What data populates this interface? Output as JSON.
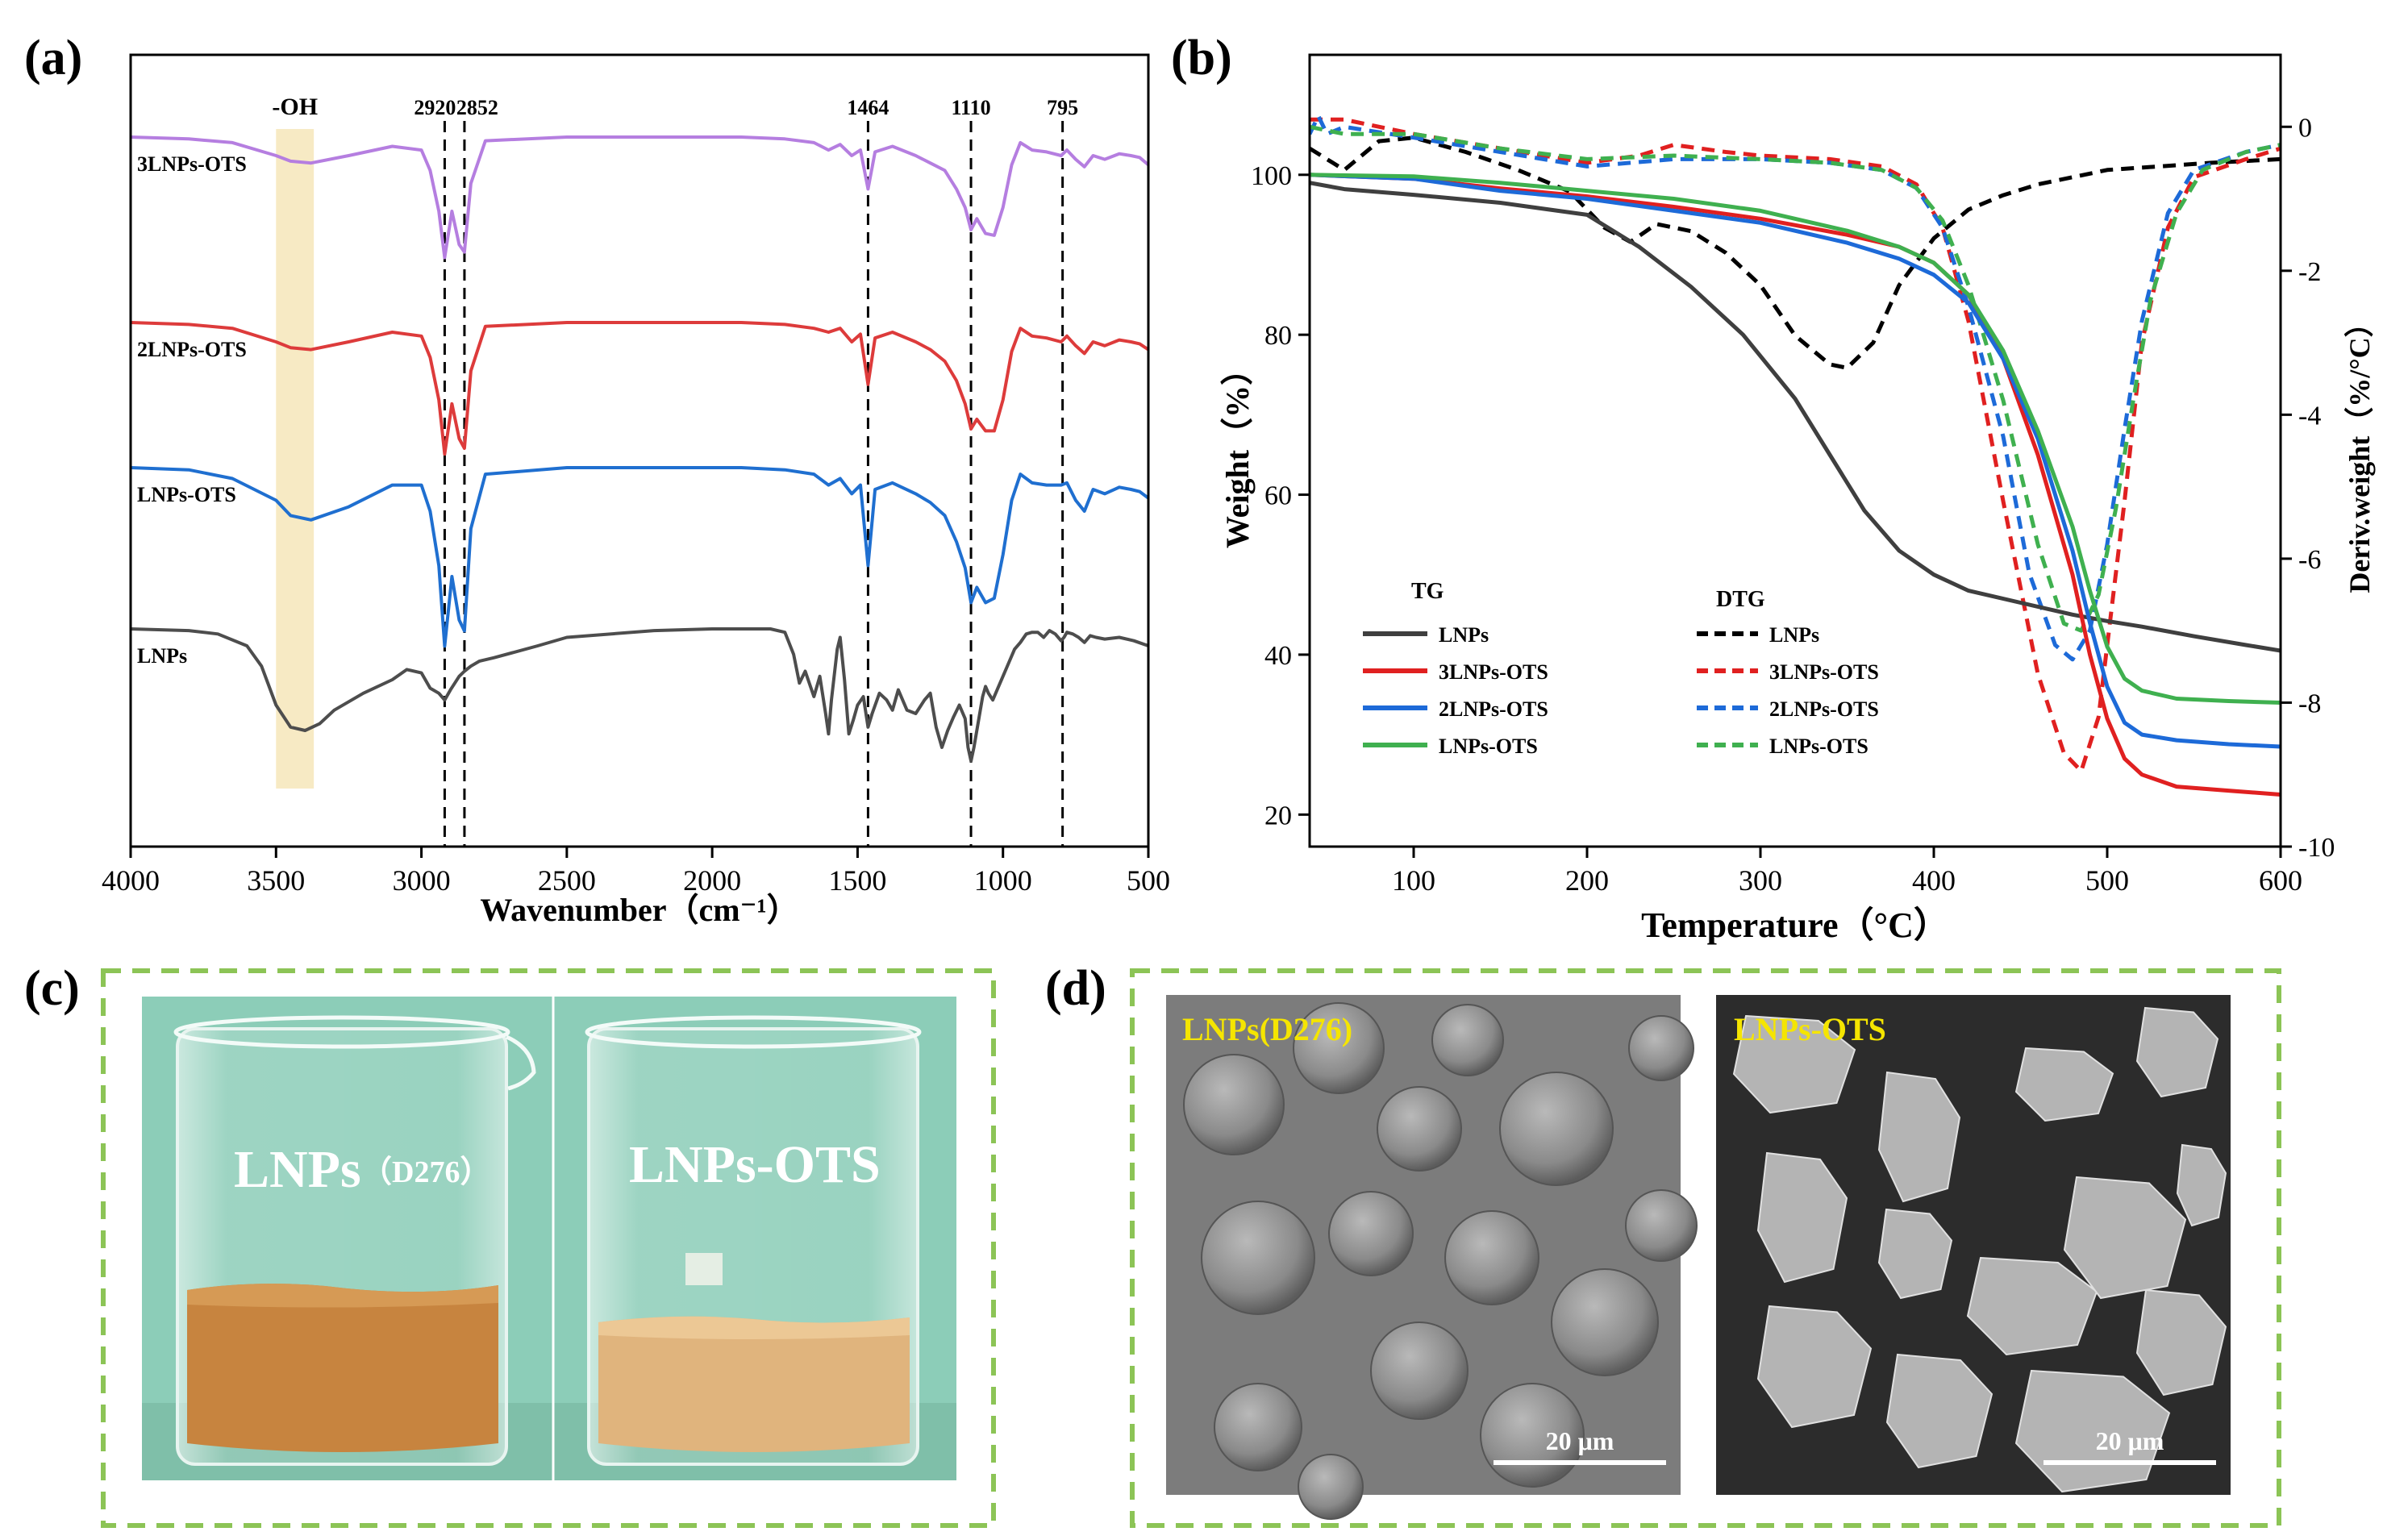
{
  "panels": {
    "a": {
      "label": "(a)"
    },
    "b": {
      "label": "(b)"
    },
    "c": {
      "label": "(c)",
      "beaker_left_label": "LNPs",
      "beaker_left_sub": "（D276）",
      "beaker_right_label": "LNPs-OTS"
    },
    "d": {
      "label": "(d)",
      "sem_left_label": "LNPs(D276)",
      "sem_right_label": "LNPs-OTS",
      "scale_bar": "20 μm"
    }
  },
  "colors": {
    "LNPs": "#4d4d4d",
    "LNPs-OTS": "#1f6fd0",
    "2LNPs-OTS": "#dd3b3b",
    "3LNPs-OTS": "#b57ee0",
    "tg_LNPs": "#3f3f3f",
    "tg_3LNPs-OTS": "#e02020",
    "tg_2LNPs-OTS": "#1d6ad8",
    "tg_LNPs-OTS": "#3fb04f",
    "oh_band": "#f7eac4",
    "dash_frame": "#8cc456",
    "beaker_bg": "#8ccdb8"
  },
  "chart_data": [
    {
      "type": "line",
      "panel": "a",
      "xlabel": "Wavenumber（cm⁻¹）",
      "ylabel": "",
      "xlim": [
        4000,
        500
      ],
      "x_reversed": true,
      "xticks": [
        4000,
        3500,
        3000,
        2500,
        2000,
        1500,
        1000,
        500
      ],
      "yticks": [],
      "band": {
        "label": "-OH",
        "from": 3500,
        "to": 3370
      },
      "peak_markers": [
        {
          "x": 2920,
          "label": "2920"
        },
        {
          "x": 2852,
          "label": "2852"
        },
        {
          "x": 1464,
          "label": "1464"
        },
        {
          "x": 1110,
          "label": "1110"
        },
        {
          "x": 795,
          "label": "795"
        }
      ],
      "series": [
        {
          "name": "3LNPs-OTS",
          "offset": 3.0,
          "x": [
            4000,
            3800,
            3650,
            3500,
            3450,
            3380,
            3250,
            3100,
            3000,
            2970,
            2940,
            2920,
            2895,
            2870,
            2852,
            2830,
            2780,
            2500,
            2200,
            1900,
            1750,
            1650,
            1600,
            1560,
            1520,
            1490,
            1464,
            1440,
            1380,
            1300,
            1250,
            1200,
            1160,
            1130,
            1110,
            1090,
            1060,
            1030,
            1000,
            970,
            940,
            900,
            850,
            800,
            780,
            750,
            720,
            690,
            650,
            600,
            560,
            530,
            500
          ],
          "y": [
            1.0,
            0.99,
            0.97,
            0.9,
            0.87,
            0.86,
            0.9,
            0.95,
            0.93,
            0.82,
            0.6,
            0.35,
            0.6,
            0.42,
            0.38,
            0.75,
            0.98,
            1.0,
            1.0,
            1.0,
            0.99,
            0.97,
            0.93,
            0.96,
            0.9,
            0.93,
            0.72,
            0.92,
            0.95,
            0.9,
            0.86,
            0.82,
            0.72,
            0.62,
            0.5,
            0.56,
            0.48,
            0.47,
            0.62,
            0.85,
            0.97,
            0.93,
            0.92,
            0.9,
            0.93,
            0.88,
            0.84,
            0.9,
            0.88,
            0.91,
            0.9,
            0.89,
            0.85
          ]
        },
        {
          "name": "2LNPs-OTS",
          "offset": 2.0,
          "x": [
            4000,
            3800,
            3650,
            3500,
            3450,
            3380,
            3250,
            3100,
            3000,
            2970,
            2940,
            2920,
            2895,
            2870,
            2852,
            2830,
            2780,
            2500,
            2200,
            1900,
            1750,
            1650,
            1600,
            1560,
            1520,
            1490,
            1464,
            1440,
            1380,
            1300,
            1250,
            1200,
            1160,
            1130,
            1110,
            1090,
            1060,
            1030,
            1000,
            970,
            940,
            900,
            850,
            800,
            780,
            750,
            720,
            690,
            650,
            600,
            560,
            530,
            500
          ],
          "y": [
            1.0,
            0.99,
            0.97,
            0.9,
            0.87,
            0.86,
            0.9,
            0.95,
            0.93,
            0.82,
            0.6,
            0.32,
            0.58,
            0.4,
            0.35,
            0.75,
            0.98,
            1.0,
            1.0,
            1.0,
            0.99,
            0.97,
            0.95,
            0.97,
            0.9,
            0.94,
            0.68,
            0.92,
            0.95,
            0.9,
            0.86,
            0.8,
            0.7,
            0.58,
            0.45,
            0.5,
            0.44,
            0.44,
            0.6,
            0.85,
            0.97,
            0.93,
            0.92,
            0.9,
            0.93,
            0.88,
            0.84,
            0.9,
            0.88,
            0.91,
            0.9,
            0.89,
            0.86
          ]
        },
        {
          "name": "LNPs-OTS",
          "offset": 1.0,
          "x": [
            4000,
            3800,
            3650,
            3500,
            3450,
            3380,
            3250,
            3100,
            3000,
            2970,
            2940,
            2920,
            2895,
            2870,
            2852,
            2830,
            2780,
            2500,
            2200,
            1900,
            1750,
            1650,
            1600,
            1560,
            1520,
            1490,
            1464,
            1440,
            1380,
            1300,
            1250,
            1200,
            1160,
            1130,
            1110,
            1090,
            1060,
            1030,
            1000,
            970,
            940,
            900,
            850,
            800,
            780,
            750,
            720,
            690,
            650,
            600,
            560,
            530,
            500
          ],
          "y": [
            1.0,
            0.99,
            0.95,
            0.85,
            0.78,
            0.76,
            0.82,
            0.92,
            0.92,
            0.8,
            0.55,
            0.18,
            0.5,
            0.3,
            0.25,
            0.72,
            0.97,
            1.0,
            1.0,
            1.0,
            0.99,
            0.97,
            0.92,
            0.95,
            0.88,
            0.92,
            0.55,
            0.9,
            0.93,
            0.88,
            0.84,
            0.78,
            0.66,
            0.54,
            0.38,
            0.45,
            0.38,
            0.4,
            0.6,
            0.85,
            0.97,
            0.93,
            0.92,
            0.92,
            0.93,
            0.85,
            0.8,
            0.9,
            0.88,
            0.91,
            0.9,
            0.89,
            0.86
          ]
        },
        {
          "name": "LNPs",
          "offset": 0.0,
          "x": [
            4000,
            3800,
            3700,
            3600,
            3550,
            3500,
            3450,
            3400,
            3350,
            3300,
            3200,
            3100,
            3050,
            3000,
            2970,
            2940,
            2920,
            2900,
            2870,
            2852,
            2830,
            2800,
            2750,
            2600,
            2500,
            2200,
            2000,
            1900,
            1800,
            1750,
            1720,
            1700,
            1680,
            1650,
            1630,
            1610,
            1600,
            1590,
            1570,
            1560,
            1545,
            1530,
            1515,
            1500,
            1480,
            1464,
            1450,
            1425,
            1400,
            1380,
            1360,
            1330,
            1300,
            1270,
            1250,
            1230,
            1210,
            1190,
            1170,
            1150,
            1130,
            1120,
            1110,
            1100,
            1085,
            1070,
            1060,
            1050,
            1035,
            1020,
            1000,
            980,
            960,
            940,
            920,
            900,
            880,
            860,
            840,
            820,
            800,
            790,
            780,
            760,
            740,
            720,
            700,
            680,
            650,
            600,
            550,
            500
          ],
          "y": [
            1.0,
            0.99,
            0.97,
            0.9,
            0.78,
            0.55,
            0.42,
            0.4,
            0.44,
            0.52,
            0.62,
            0.7,
            0.76,
            0.74,
            0.65,
            0.62,
            0.58,
            0.64,
            0.72,
            0.75,
            0.78,
            0.81,
            0.83,
            0.9,
            0.95,
            0.99,
            1.0,
            1.0,
            1.0,
            0.98,
            0.85,
            0.68,
            0.75,
            0.6,
            0.72,
            0.5,
            0.38,
            0.58,
            0.88,
            0.95,
            0.7,
            0.38,
            0.46,
            0.55,
            0.6,
            0.42,
            0.5,
            0.62,
            0.58,
            0.52,
            0.64,
            0.52,
            0.5,
            0.58,
            0.62,
            0.42,
            0.3,
            0.4,
            0.48,
            0.55,
            0.47,
            0.3,
            0.22,
            0.3,
            0.45,
            0.6,
            0.66,
            0.62,
            0.58,
            0.64,
            0.72,
            0.8,
            0.88,
            0.92,
            0.97,
            0.98,
            0.98,
            0.95,
            0.99,
            0.97,
            0.93,
            0.95,
            0.98,
            0.97,
            0.95,
            0.92,
            0.96,
            0.95,
            0.94,
            0.95,
            0.93,
            0.9
          ]
        }
      ]
    },
    {
      "type": "line",
      "panel": "b",
      "xlabel": "Temperature（°C）",
      "ylabel": "Weight（%）",
      "y2label": "Deriv.weight（%/°C）",
      "xlim": [
        40,
        600
      ],
      "ylim": [
        16,
        115
      ],
      "y2lim": [
        -10,
        1
      ],
      "xticks": [
        100,
        200,
        300,
        400,
        500,
        600
      ],
      "yticks": [
        20,
        40,
        60,
        80,
        100
      ],
      "y2ticks": [
        0,
        -2,
        -4,
        -6,
        -8,
        -10
      ],
      "legend": {
        "tg_title": "TG",
        "dtg_title": "DTG",
        "placement": "lower-left"
      },
      "series": [
        {
          "name": "LNPs",
          "group": "TG",
          "axis": "left",
          "style": "solid",
          "x": [
            40,
            60,
            100,
            150,
            200,
            230,
            260,
            290,
            320,
            340,
            360,
            380,
            400,
            420,
            450,
            480,
            500,
            520,
            550,
            580,
            600
          ],
          "y": [
            99,
            98.2,
            97.5,
            96.5,
            95,
            91,
            86,
            80,
            72,
            65,
            58,
            53,
            50,
            48,
            46.5,
            45,
            44.2,
            43.5,
            42.3,
            41.2,
            40.5
          ]
        },
        {
          "name": "3LNPs-OTS",
          "group": "TG",
          "axis": "left",
          "style": "solid",
          "x": [
            40,
            100,
            150,
            200,
            250,
            300,
            350,
            380,
            400,
            420,
            440,
            460,
            480,
            490,
            500,
            510,
            520,
            540,
            570,
            600
          ],
          "y": [
            100,
            99.5,
            98.3,
            97.3,
            96,
            94.5,
            92.5,
            91,
            89,
            85,
            77,
            65,
            50,
            40,
            32,
            27,
            25,
            23.5,
            23,
            22.5
          ]
        },
        {
          "name": "2LNPs-OTS",
          "group": "TG",
          "axis": "left",
          "style": "solid",
          "x": [
            40,
            100,
            150,
            200,
            250,
            300,
            350,
            380,
            400,
            420,
            440,
            460,
            480,
            490,
            500,
            510,
            520,
            540,
            570,
            600
          ],
          "y": [
            100,
            99.5,
            98,
            97,
            95.5,
            94,
            91.5,
            89.5,
            87.5,
            84,
            77,
            67,
            53,
            44,
            36,
            31.5,
            30,
            29.3,
            28.8,
            28.5
          ]
        },
        {
          "name": "LNPs-OTS",
          "group": "TG",
          "axis": "left",
          "style": "solid",
          "x": [
            40,
            100,
            150,
            200,
            250,
            300,
            350,
            380,
            400,
            420,
            440,
            460,
            480,
            490,
            500,
            510,
            520,
            540,
            570,
            600
          ],
          "y": [
            100,
            99.8,
            99,
            98,
            97,
            95.5,
            93,
            91,
            89,
            85,
            78,
            68,
            56,
            48,
            41,
            37,
            35.5,
            34.5,
            34.2,
            34
          ]
        },
        {
          "name": "LNPs",
          "group": "DTG",
          "axis": "right",
          "style": "dashed",
          "x": [
            40,
            60,
            80,
            100,
            130,
            160,
            190,
            210,
            225,
            240,
            260,
            280,
            300,
            320,
            340,
            350,
            365,
            380,
            400,
            420,
            440,
            460,
            480,
            500,
            530,
            560,
            600
          ],
          "y": [
            -0.3,
            -0.6,
            -0.2,
            -0.15,
            -0.35,
            -0.6,
            -0.9,
            -1.4,
            -1.6,
            -1.35,
            -1.45,
            -1.75,
            -2.2,
            -2.9,
            -3.3,
            -3.35,
            -3.0,
            -2.2,
            -1.55,
            -1.15,
            -0.95,
            -0.8,
            -0.7,
            -0.6,
            -0.55,
            -0.5,
            -0.45
          ]
        },
        {
          "name": "3LNPs-OTS",
          "group": "DTG",
          "axis": "right",
          "style": "dashed",
          "x": [
            40,
            60,
            100,
            150,
            200,
            230,
            250,
            280,
            300,
            340,
            370,
            390,
            405,
            420,
            440,
            460,
            475,
            485,
            495,
            510,
            520,
            535,
            550,
            580,
            600
          ],
          "y": [
            0.1,
            0.1,
            -0.1,
            -0.3,
            -0.5,
            -0.4,
            -0.25,
            -0.35,
            -0.4,
            -0.45,
            -0.55,
            -0.8,
            -1.4,
            -2.7,
            -5.2,
            -7.6,
            -8.7,
            -8.95,
            -8.2,
            -5.2,
            -3.0,
            -1.4,
            -0.7,
            -0.45,
            -0.3
          ]
        },
        {
          "name": "2LNPs-OTS",
          "group": "DTG",
          "axis": "right",
          "style": "dashed",
          "x": [
            40,
            45,
            50,
            60,
            100,
            150,
            200,
            250,
            300,
            340,
            370,
            390,
            405,
            420,
            440,
            455,
            470,
            480,
            490,
            500,
            510,
            520,
            535,
            550,
            580,
            600
          ],
          "y": [
            -0.1,
            0.15,
            -0.1,
            0.0,
            -0.15,
            -0.35,
            -0.55,
            -0.45,
            -0.45,
            -0.5,
            -0.6,
            -0.85,
            -1.4,
            -2.5,
            -4.3,
            -6.2,
            -7.2,
            -7.4,
            -7.0,
            -5.8,
            -4.2,
            -2.7,
            -1.2,
            -0.6,
            -0.35,
            -0.25
          ]
        },
        {
          "name": "LNPs-OTS",
          "group": "DTG",
          "axis": "right",
          "style": "dashed",
          "x": [
            40,
            60,
            100,
            150,
            200,
            250,
            300,
            340,
            370,
            390,
            405,
            420,
            440,
            460,
            475,
            485,
            495,
            505,
            515,
            525,
            540,
            555,
            580,
            600
          ],
          "y": [
            0.0,
            -0.1,
            -0.1,
            -0.3,
            -0.45,
            -0.4,
            -0.45,
            -0.5,
            -0.6,
            -0.85,
            -1.3,
            -2.2,
            -3.8,
            -5.8,
            -6.9,
            -7.0,
            -6.5,
            -5.3,
            -3.8,
            -2.4,
            -1.2,
            -0.6,
            -0.35,
            -0.25
          ]
        }
      ]
    }
  ]
}
